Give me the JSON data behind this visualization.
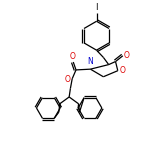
{
  "bg_color": "#ffffff",
  "line_color": "#000000",
  "figsize": [
    1.52,
    1.52
  ],
  "dpi": 100,
  "O_color": "#dd0000",
  "N_color": "#0000cc",
  "I_label": "I",
  "O_label": "O",
  "N_label": "N",
  "xlim": [
    0.0,
    1.0
  ],
  "ylim": [
    0.0,
    1.0
  ],
  "lw": 0.9
}
